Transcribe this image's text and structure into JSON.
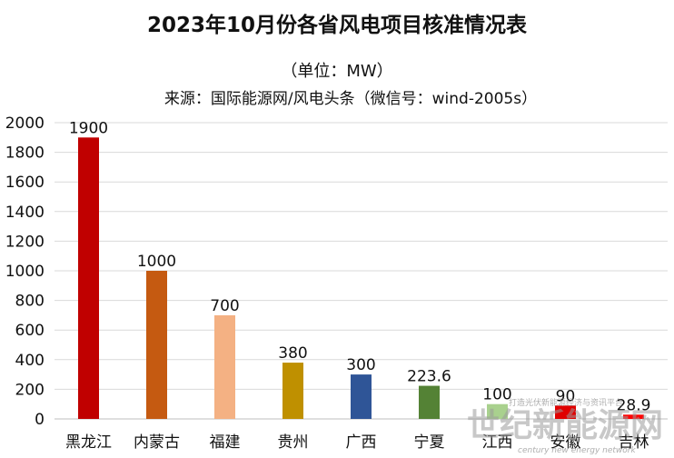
{
  "chart_data": {
    "type": "bar",
    "title": "2023年10月份各省风电项目核准情况表",
    "subtitle": "（单位：MW）",
    "source": "来源：国际能源网/风电头条（微信号：wind-2005s）",
    "categories": [
      "黑龙江",
      "内蒙古",
      "福建",
      "贵州",
      "广西",
      "宁夏",
      "江西",
      "安徽",
      "吉林"
    ],
    "values": [
      1900,
      1000,
      700,
      380,
      300,
      223.6,
      100,
      90,
      28.9
    ],
    "value_labels": [
      "1900",
      "1000",
      "700",
      "380",
      "300",
      "223.6",
      "100",
      "90",
      "28.9"
    ],
    "colors": [
      "#c00000",
      "#c55a11",
      "#f4b183",
      "#bf9000",
      "#2f5597",
      "#548235",
      "#a9d18e",
      "#e00000",
      "#ff0000"
    ],
    "yticks": [
      0,
      200,
      400,
      600,
      800,
      1000,
      1200,
      1400,
      1600,
      1800,
      2000
    ],
    "ylim": [
      0,
      2000
    ],
    "grid": true,
    "legend": false,
    "xlabel": "",
    "ylabel": ""
  },
  "watermark": {
    "text": "世纪新能源网",
    "tagline_cn": "打造光伏新能源经济与资讯平台",
    "tagline_en": "century new energy network"
  }
}
